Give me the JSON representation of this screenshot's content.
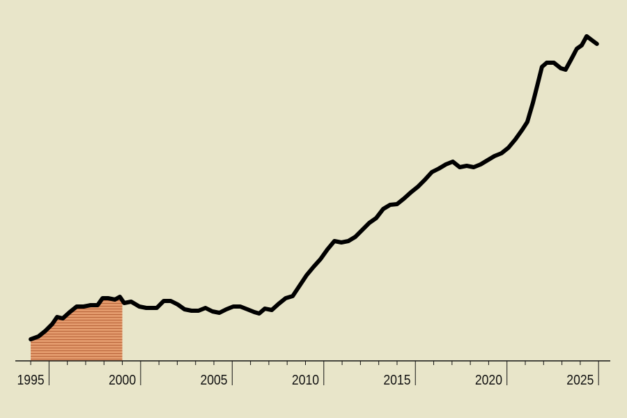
{
  "chart_data": {
    "type": "line",
    "x": [
      1995.0,
      1995.42,
      1995.8,
      1996.18,
      1996.44,
      1996.75,
      1997.13,
      1997.51,
      1997.89,
      1998.27,
      1998.65,
      1998.92,
      1999.22,
      1999.6,
      1999.87,
      2000.1,
      2000.48,
      2000.93,
      2001.31,
      2001.88,
      2002.26,
      2002.64,
      2003.02,
      2003.4,
      2003.78,
      2004.16,
      2004.54,
      2004.92,
      2005.3,
      2005.68,
      2006.06,
      2006.44,
      2006.83,
      2007.21,
      2007.47,
      2007.78,
      2008.16,
      2008.54,
      2008.92,
      2009.3,
      2009.68,
      2010.06,
      2010.44,
      2010.82,
      2011.2,
      2011.58,
      2011.96,
      2012.34,
      2012.72,
      2013.1,
      2013.48,
      2013.86,
      2014.24,
      2014.62,
      2015.0,
      2015.38,
      2015.76,
      2016.14,
      2016.52,
      2016.9,
      2017.28,
      2017.66,
      2018.04,
      2018.42,
      2018.8,
      2019.18,
      2019.56,
      2019.94,
      2020.32,
      2020.7,
      2021.08,
      2021.46,
      2021.84,
      2022.11,
      2022.41,
      2022.68,
      2022.91,
      2023.17,
      2023.56,
      2023.94,
      2024.2,
      2024.51,
      2024.81,
      2025.08,
      2025.35,
      2025.65,
      2025.91
    ],
    "series": [
      {
        "color": "#000000",
        "values": [
          31,
          35,
          43,
          53,
          63,
          61,
          70,
          78,
          78,
          80,
          80,
          90,
          90,
          88,
          92,
          83,
          85,
          78,
          76,
          76,
          86,
          86,
          81,
          74,
          72,
          72,
          76,
          71,
          69,
          74,
          78,
          78,
          74,
          70,
          68,
          75,
          73,
          82,
          90,
          93,
          108,
          123,
          135,
          146,
          160,
          172,
          170,
          172,
          178,
          188,
          198,
          205,
          218,
          224,
          225,
          233,
          242,
          250,
          260,
          271,
          276,
          282,
          286,
          278,
          280,
          278,
          282,
          288,
          294,
          298,
          306,
          318,
          332,
          343,
          370,
          398,
          422,
          428,
          428,
          420,
          418,
          433,
          448,
          453,
          466,
          460,
          455
        ]
      }
    ],
    "shade_range": [
      1995,
      2000
    ],
    "shade_color": "#e39a6c",
    "xlim": [
      1994.16,
      2026.64
    ],
    "ylim": [
      0,
      480
    ],
    "xticks": [
      1995,
      2000,
      2005,
      2010,
      2015,
      2020,
      2025
    ],
    "major_tick_marks": [
      1996,
      2001,
      2006,
      2011,
      2016,
      2021,
      2026
    ],
    "minor_tick_marks": [
      1995,
      1997,
      1998,
      1999,
      2000,
      2002,
      2003,
      2004,
      2005,
      2007,
      2008,
      2009,
      2010,
      2012,
      2013,
      2014,
      2015,
      2017,
      2018,
      2019,
      2020,
      2022,
      2023,
      2024,
      2025
    ]
  }
}
